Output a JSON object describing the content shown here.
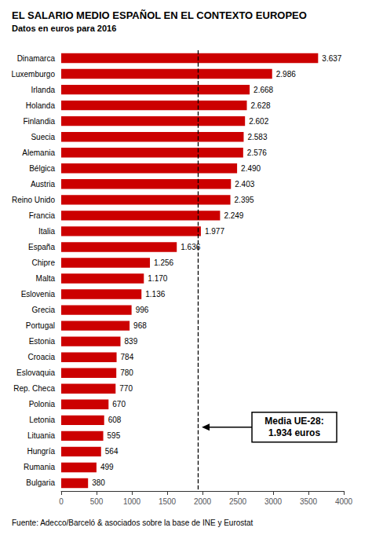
{
  "chart_data": {
    "type": "bar",
    "orientation": "horizontal",
    "title": "EL SALARIO MEDIO ESPAÑOL EN EL CONTEXTO EUROPEO",
    "subtitle": "Datos en euros para 2016",
    "source": "Fuente: Adecco/Barceló & asociados sobre la base de INE y Eurostat",
    "categories": [
      "Dinamarca",
      "Luxemburgo",
      "Irlanda",
      "Holanda",
      "Finlandia",
      "Suecia",
      "Alemania",
      "Bélgica",
      "Austria",
      "Reino Unido",
      "Francia",
      "Italia",
      "España",
      "Chipre",
      "Malta",
      "Eslovenia",
      "Grecia",
      "Portugal",
      "Estonia",
      "Croacia",
      "Eslovaquia",
      "Rep. Checa",
      "Polonia",
      "Letonia",
      "Lituania",
      "Hungría",
      "Rumania",
      "Bulgaria"
    ],
    "values": [
      3637,
      2986,
      2668,
      2628,
      2602,
      2583,
      2576,
      2490,
      2403,
      2395,
      2249,
      1977,
      1636,
      1256,
      1170,
      1136,
      996,
      968,
      839,
      784,
      780,
      770,
      670,
      608,
      595,
      564,
      499,
      380
    ],
    "value_labels": [
      "3.637",
      "2.986",
      "2.668",
      "2.628",
      "2.602",
      "2.583",
      "2.576",
      "2.490",
      "2.403",
      "2.395",
      "2.249",
      "1.977",
      "1.636",
      "1.256",
      "1.170",
      "1.136",
      "996",
      "968",
      "839",
      "784",
      "780",
      "770",
      "670",
      "608",
      "595",
      "564",
      "499",
      "380"
    ],
    "data_labels": true,
    "color": "#cc0000",
    "xlim": [
      0,
      4000
    ],
    "xticks": [
      0,
      500,
      1000,
      1500,
      2000,
      2500,
      3000,
      3500,
      4000
    ],
    "grid": false,
    "annotations": [
      {
        "text": "Media UE-28:\n1.934 euros",
        "x": 1934
      }
    ]
  }
}
